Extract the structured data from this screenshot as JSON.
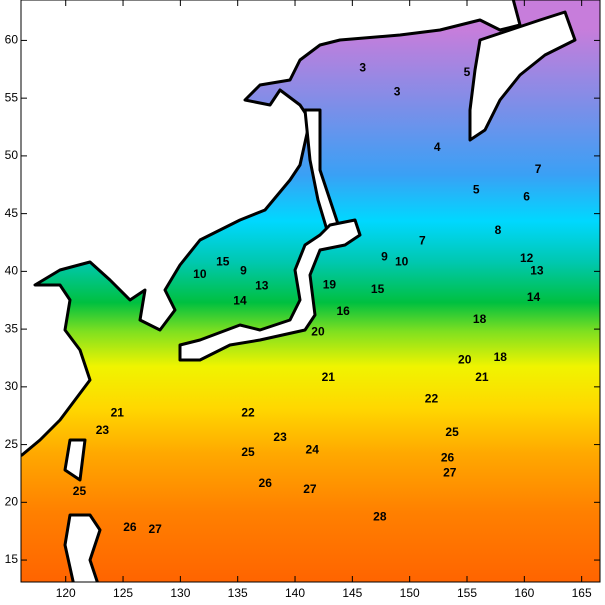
{
  "map": {
    "xlim": [
      116.1,
      166.6
    ],
    "ylim": [
      13.1,
      63.5
    ],
    "xticks": [
      120,
      125,
      130,
      135,
      140,
      145,
      150,
      155,
      160,
      165
    ],
    "yticks": [
      15,
      20,
      25,
      30,
      35,
      40,
      45,
      50,
      55,
      60
    ],
    "contour_labels": [
      {
        "text": "21",
        "lon": 142.9,
        "lat": 30.8
      },
      {
        "text": "22",
        "lon": 135.9,
        "lat": 27.7
      },
      {
        "text": "22",
        "lon": 151.9,
        "lat": 28.9
      },
      {
        "text": "23",
        "lon": 138.7,
        "lat": 25.6
      },
      {
        "text": "24",
        "lon": 141.5,
        "lat": 24.5
      },
      {
        "text": "25",
        "lon": 135.9,
        "lat": 24.3
      },
      {
        "text": "25",
        "lon": 153.7,
        "lat": 26.0
      },
      {
        "text": "26",
        "lon": 153.3,
        "lat": 23.8
      },
      {
        "text": "27",
        "lon": 153.5,
        "lat": 22.5
      },
      {
        "text": "26",
        "lon": 137.4,
        "lat": 21.6
      },
      {
        "text": "27",
        "lon": 141.3,
        "lat": 21.1
      },
      {
        "text": "26",
        "lon": 125.6,
        "lat": 17.8
      },
      {
        "text": "27",
        "lon": 127.8,
        "lat": 17.6
      },
      {
        "text": "28",
        "lon": 147.4,
        "lat": 18.7
      },
      {
        "text": "20",
        "lon": 154.8,
        "lat": 32.3
      },
      {
        "text": "18",
        "lon": 157.9,
        "lat": 32.5
      },
      {
        "text": "21",
        "lon": 156.3,
        "lat": 30.8
      },
      {
        "text": "18",
        "lon": 156.1,
        "lat": 35.8
      },
      {
        "text": "16",
        "lon": 144.2,
        "lat": 36.5
      },
      {
        "text": "15",
        "lon": 147.2,
        "lat": 38.4
      },
      {
        "text": "10",
        "lon": 149.3,
        "lat": 40.8
      },
      {
        "text": "9",
        "lon": 147.8,
        "lat": 41.2
      },
      {
        "text": "7",
        "lon": 151.1,
        "lat": 42.6
      },
      {
        "text": "8",
        "lon": 157.7,
        "lat": 43.5
      },
      {
        "text": "6",
        "lon": 160.2,
        "lat": 46.4
      },
      {
        "text": "5",
        "lon": 155.8,
        "lat": 47.0
      },
      {
        "text": "7",
        "lon": 161.2,
        "lat": 48.8
      },
      {
        "text": "4",
        "lon": 152.4,
        "lat": 50.7
      },
      {
        "text": "3",
        "lon": 148.9,
        "lat": 55.5
      },
      {
        "text": "3",
        "lon": 145.9,
        "lat": 57.6
      },
      {
        "text": "5",
        "lon": 155.0,
        "lat": 57.2
      },
      {
        "text": "12",
        "lon": 160.2,
        "lat": 41.1
      },
      {
        "text": "13",
        "lon": 161.1,
        "lat": 40.0
      },
      {
        "text": "14",
        "lon": 160.8,
        "lat": 37.7
      },
      {
        "text": "20",
        "lon": 142.0,
        "lat": 34.7
      },
      {
        "text": "19",
        "lon": 143.0,
        "lat": 38.8
      },
      {
        "text": "14",
        "lon": 135.2,
        "lat": 37.4
      },
      {
        "text": "13",
        "lon": 137.1,
        "lat": 38.7
      },
      {
        "text": "10",
        "lon": 131.7,
        "lat": 39.7
      },
      {
        "text": "15",
        "lon": 133.7,
        "lat": 40.8
      },
      {
        "text": "9",
        "lon": 135.5,
        "lat": 40.0
      },
      {
        "text": "21",
        "lon": 124.5,
        "lat": 27.7
      },
      {
        "text": "23",
        "lon": 123.2,
        "lat": 26.2
      },
      {
        "text": "25",
        "lon": 121.2,
        "lat": 20.9
      }
    ]
  }
}
